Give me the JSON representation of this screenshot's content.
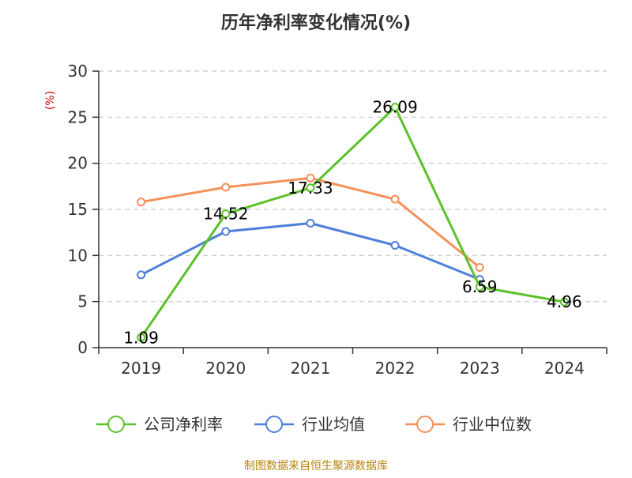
{
  "chart_data": {
    "type": "line",
    "title": "历年净利率变化情况(%)",
    "ylabel": "(%)",
    "xlabel": "",
    "categories": [
      "2019",
      "2020",
      "2021",
      "2022",
      "2023",
      "2024"
    ],
    "yticks": [
      0,
      5,
      10,
      15,
      20,
      25,
      30
    ],
    "ylim": [
      0,
      30
    ],
    "grid": true,
    "legend_position": "bottom",
    "series": [
      {
        "name": "公司净利率",
        "color": "#5cc12a",
        "values": [
          1.09,
          14.52,
          17.33,
          26.09,
          6.59,
          4.96
        ],
        "labels": [
          "1.09",
          "14.52",
          "17.33",
          "26.09",
          "6.59",
          "4.96"
        ]
      },
      {
        "name": "行业均值",
        "color": "#4f7fdb",
        "values": [
          7.9,
          12.6,
          13.5,
          11.1,
          7.4,
          null
        ]
      },
      {
        "name": "行业中位数",
        "color": "#f5905a",
        "values": [
          15.8,
          17.4,
          18.4,
          16.1,
          8.7,
          null
        ]
      }
    ],
    "source": "制图数据来自恒生聚源数据库"
  }
}
